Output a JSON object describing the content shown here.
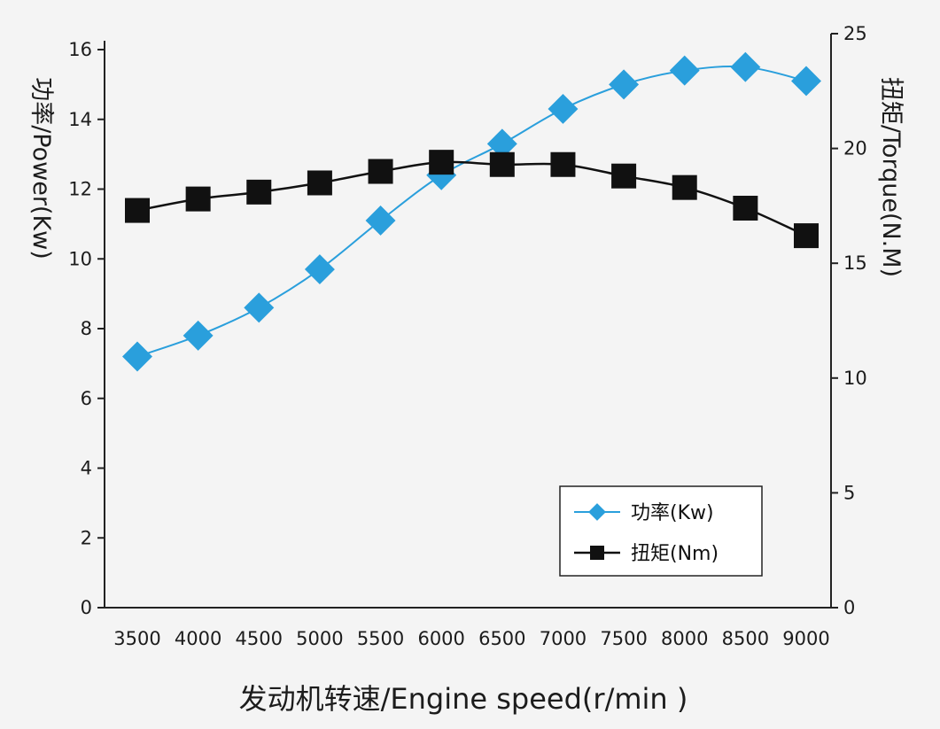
{
  "chart_data": {
    "type": "line",
    "categories": [
      "3500",
      "4000",
      "4500",
      "5000",
      "5500",
      "6000",
      "6500",
      "7000",
      "7500",
      "8000",
      "8500",
      "9000"
    ],
    "series": [
      {
        "name": "功率(Kw)",
        "axis": "left",
        "marker": "diamond",
        "color": "#2a9fdc",
        "values": [
          7.2,
          7.8,
          8.6,
          9.7,
          11.1,
          12.4,
          13.3,
          14.3,
          15.0,
          15.4,
          15.5,
          15.1
        ]
      },
      {
        "name": "扭矩(Nm)",
        "axis": "right",
        "marker": "square",
        "color": "#111111",
        "values": [
          17.3,
          17.8,
          18.1,
          18.5,
          19.0,
          19.4,
          19.3,
          19.3,
          18.8,
          18.3,
          17.4,
          16.2
        ]
      }
    ],
    "ylabel": "功率/Power(Kw)",
    "y2label": "扭矩/Torque(N.M)",
    "xlabel": "发动机转速/Engine speed(r/min )",
    "ylim": [
      0,
      16
    ],
    "y2lim": [
      0,
      25
    ],
    "yticks": [
      "0",
      "2",
      "4",
      "6",
      "8",
      "10",
      "12",
      "14",
      "16"
    ],
    "y2ticks": [
      "0",
      "5",
      "10",
      "15",
      "20",
      "25"
    ],
    "legend_position": "bottom-right",
    "grid": false
  }
}
